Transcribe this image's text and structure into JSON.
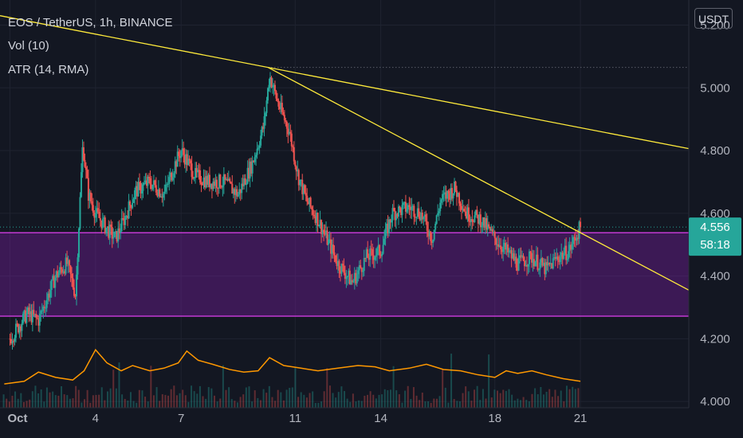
{
  "legend": {
    "symbol": "EOS / TetherUS, 1h, BINANCE",
    "vol": "Vol (10)",
    "atr": "ATR (14, RMA)"
  },
  "currency": "USDT",
  "last_price": {
    "value": "4.556",
    "countdown": "58:18",
    "color": "#26a69a"
  },
  "colors": {
    "background": "#131722",
    "up": "#26a69a",
    "down": "#ef5350",
    "zone": "#7b1fa2",
    "trendline": "#ffeb3b",
    "atr": "#ff9800",
    "axis_text": "#b2b5be"
  },
  "chart_data": {
    "type": "candlestick",
    "title": "EOS / TetherUS, 1h, BINANCE",
    "xlabel": "",
    "ylabel": "",
    "x_ticks": [
      {
        "label": "Oct",
        "day": 1
      },
      {
        "label": "4",
        "day": 4
      },
      {
        "label": "7",
        "day": 7
      },
      {
        "label": "11",
        "day": 11
      },
      {
        "label": "14",
        "day": 14
      },
      {
        "label": "18",
        "day": 18
      },
      {
        "label": "21",
        "day": 21
      }
    ],
    "xlim": [
      0.65,
      24.8
    ],
    "ylim": [
      3.98,
      5.28
    ],
    "y_ticks": [
      "5.200",
      "5.000",
      "4.800",
      "4.600",
      "4.400",
      "4.200",
      "4.000"
    ],
    "price_path": [
      [
        1.0,
        4.2
      ],
      [
        1.6,
        4.28
      ],
      [
        2.0,
        4.26
      ],
      [
        2.6,
        4.4
      ],
      [
        3.0,
        4.44
      ],
      [
        3.3,
        4.34
      ],
      [
        3.55,
        4.82
      ],
      [
        3.75,
        4.66
      ],
      [
        4.0,
        4.6
      ],
      [
        4.4,
        4.55
      ],
      [
        4.7,
        4.52
      ],
      [
        5.0,
        4.58
      ],
      [
        5.4,
        4.67
      ],
      [
        5.9,
        4.7
      ],
      [
        6.4,
        4.66
      ],
      [
        6.8,
        4.76
      ],
      [
        7.0,
        4.8
      ],
      [
        7.5,
        4.72
      ],
      [
        8.0,
        4.7
      ],
      [
        8.5,
        4.7
      ],
      [
        9.0,
        4.66
      ],
      [
        9.5,
        4.76
      ],
      [
        9.9,
        4.88
      ],
      [
        10.1,
        5.04
      ],
      [
        10.4,
        4.95
      ],
      [
        10.8,
        4.86
      ],
      [
        11.1,
        4.72
      ],
      [
        11.4,
        4.64
      ],
      [
        11.8,
        4.58
      ],
      [
        12.1,
        4.52
      ],
      [
        12.5,
        4.44
      ],
      [
        13.0,
        4.38
      ],
      [
        13.5,
        4.46
      ],
      [
        14.0,
        4.48
      ],
      [
        14.4,
        4.6
      ],
      [
        15.0,
        4.62
      ],
      [
        15.4,
        4.6
      ],
      [
        15.8,
        4.52
      ],
      [
        16.1,
        4.64
      ],
      [
        16.6,
        4.68
      ],
      [
        17.0,
        4.6
      ],
      [
        17.5,
        4.58
      ],
      [
        18.0,
        4.52
      ],
      [
        18.4,
        4.48
      ],
      [
        18.8,
        4.44
      ],
      [
        19.3,
        4.46
      ],
      [
        19.8,
        4.42
      ],
      [
        20.2,
        4.46
      ],
      [
        20.6,
        4.48
      ],
      [
        21.0,
        4.556
      ]
    ],
    "zone": {
      "high": 4.538,
      "low": 4.272
    },
    "current_price": 4.556,
    "prior_high": 5.065,
    "trendlines": [
      {
        "from": [
          0.65,
          5.23
        ],
        "to": [
          10.05,
          5.065
        ],
        "extend_right": true
      },
      {
        "from": [
          10.05,
          5.065
        ],
        "to": [
          21.0,
          4.538
        ],
        "extend_right": true
      }
    ],
    "atr_series": [
      [
        0.8,
        0.006
      ],
      [
        1.5,
        0.008
      ],
      [
        2.0,
        0.015
      ],
      [
        2.6,
        0.011
      ],
      [
        3.2,
        0.009
      ],
      [
        3.6,
        0.016
      ],
      [
        4.0,
        0.032
      ],
      [
        4.4,
        0.022
      ],
      [
        4.9,
        0.016
      ],
      [
        5.3,
        0.02
      ],
      [
        5.9,
        0.016
      ],
      [
        6.4,
        0.018
      ],
      [
        6.9,
        0.022
      ],
      [
        7.2,
        0.031
      ],
      [
        7.6,
        0.024
      ],
      [
        8.1,
        0.021
      ],
      [
        8.7,
        0.017
      ],
      [
        9.2,
        0.015
      ],
      [
        9.7,
        0.016
      ],
      [
        10.1,
        0.026
      ],
      [
        10.6,
        0.02
      ],
      [
        11.2,
        0.018
      ],
      [
        11.8,
        0.016
      ],
      [
        12.5,
        0.018
      ],
      [
        13.2,
        0.02
      ],
      [
        13.8,
        0.019
      ],
      [
        14.3,
        0.016
      ],
      [
        15.0,
        0.018
      ],
      [
        15.6,
        0.021
      ],
      [
        16.2,
        0.017
      ],
      [
        16.8,
        0.016
      ],
      [
        17.4,
        0.013
      ],
      [
        18.0,
        0.011
      ],
      [
        18.4,
        0.016
      ],
      [
        18.8,
        0.014
      ],
      [
        19.3,
        0.016
      ],
      [
        19.8,
        0.013
      ],
      [
        20.4,
        0.01
      ],
      [
        21.0,
        0.008
      ]
    ]
  }
}
